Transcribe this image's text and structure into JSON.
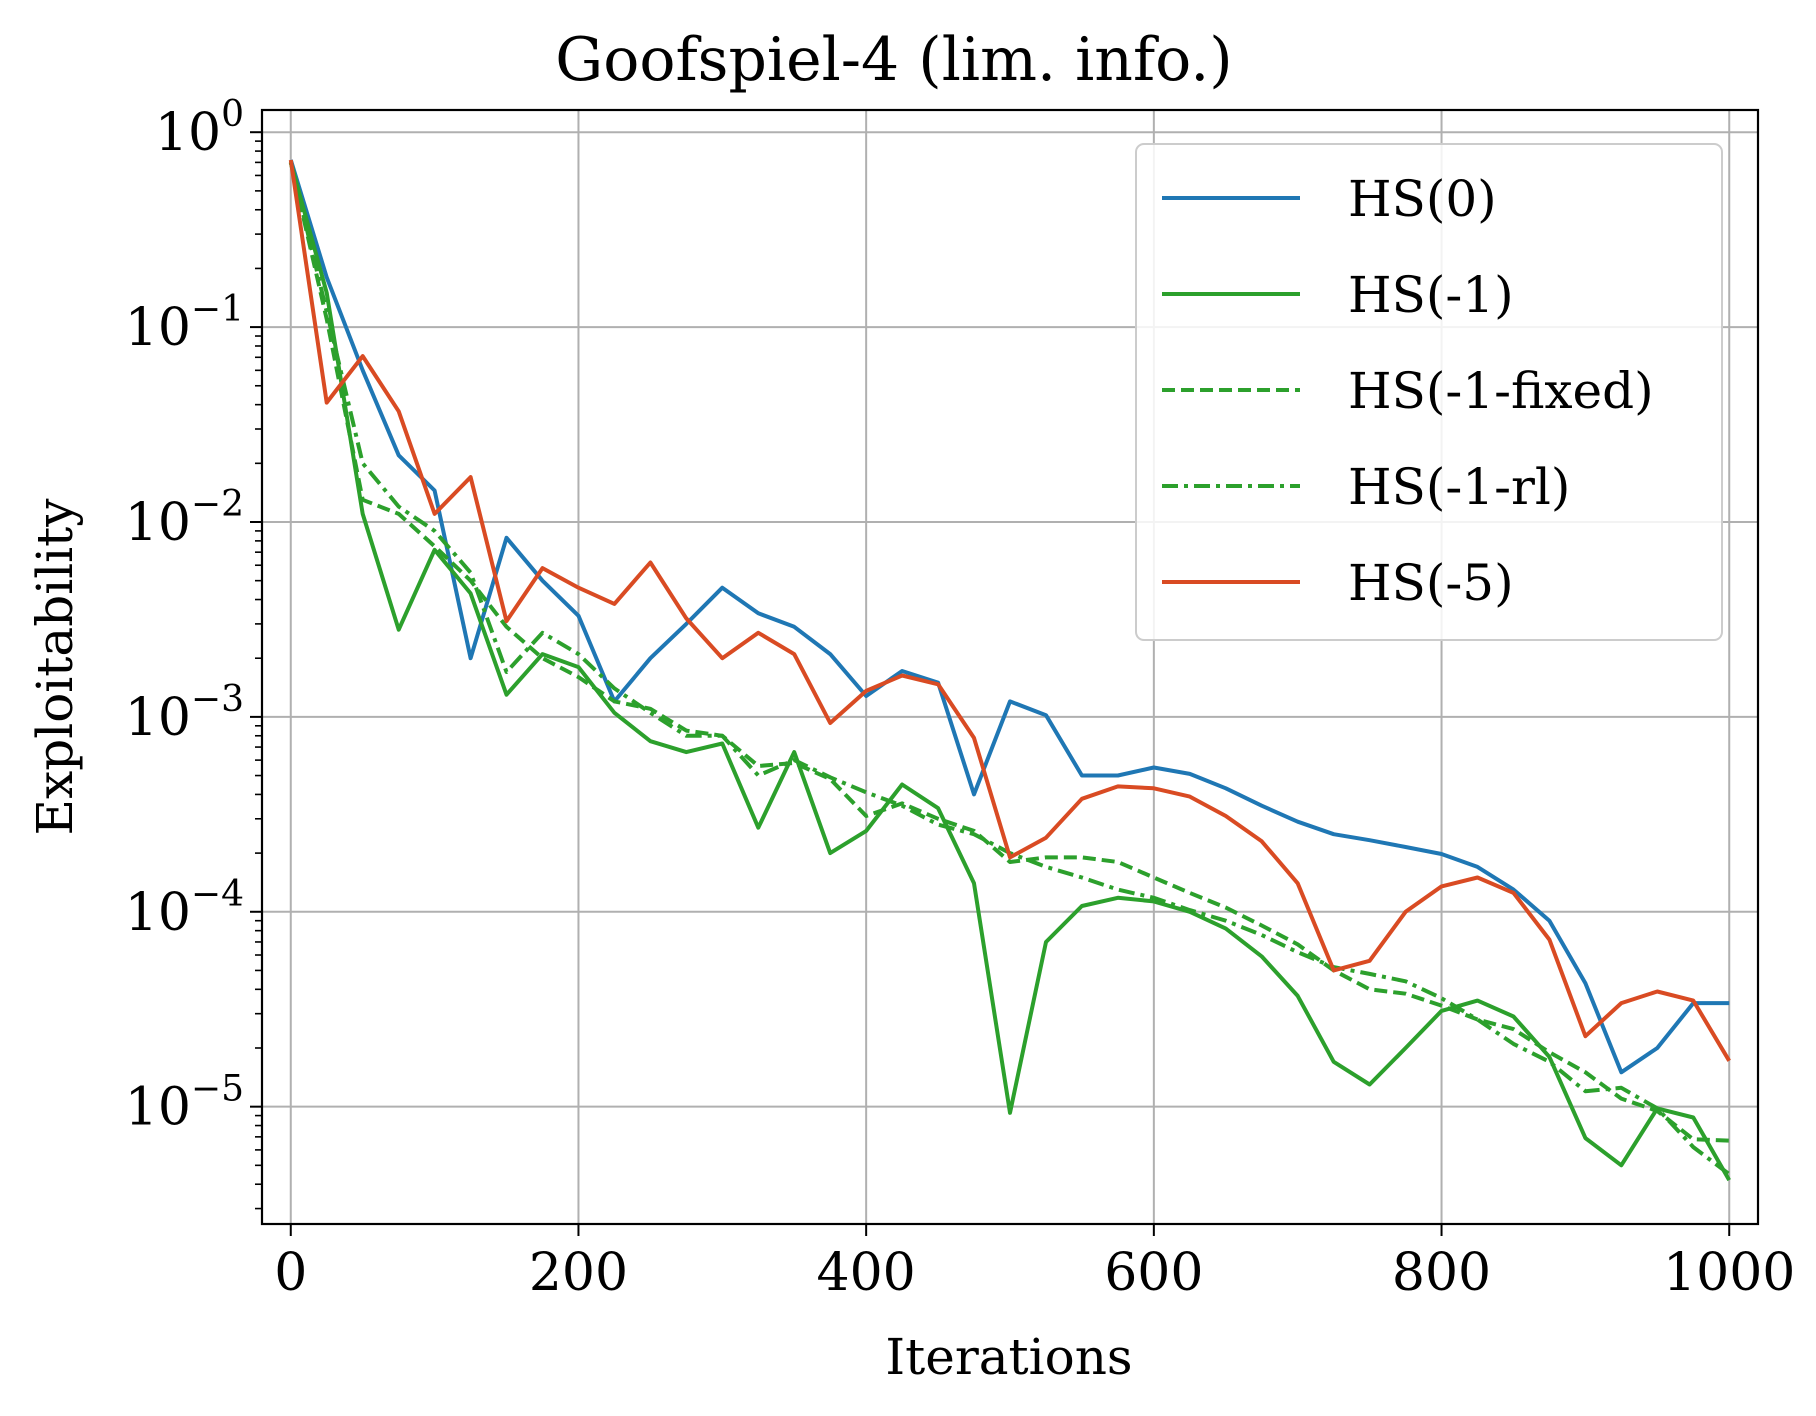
{
  "chart_data": {
    "type": "line",
    "title": "Goofspiel-4 (lim. info.)",
    "xlabel": "Iterations",
    "ylabel": "Exploitability",
    "xscale": "linear",
    "yscale": "log",
    "xlim": [
      -20,
      1020
    ],
    "ylim": [
      2.5e-06,
      1.3
    ],
    "grid": true,
    "legend_position": "top-right",
    "x_ticks": [
      {
        "value": 0,
        "label": "0"
      },
      {
        "value": 200,
        "label": "200"
      },
      {
        "value": 400,
        "label": "400"
      },
      {
        "value": 600,
        "label": "600"
      },
      {
        "value": 800,
        "label": "800"
      },
      {
        "value": 1000,
        "label": "1000"
      }
    ],
    "y_ticks": [
      {
        "value": 1,
        "base": "10",
        "exp": "0"
      },
      {
        "value": 0.1,
        "base": "10",
        "exp": "−1"
      },
      {
        "value": 0.01,
        "base": "10",
        "exp": "−2"
      },
      {
        "value": 0.001,
        "base": "10",
        "exp": "−3"
      },
      {
        "value": 0.0001,
        "base": "10",
        "exp": "−4"
      },
      {
        "value": 1e-05,
        "base": "10",
        "exp": "−5"
      }
    ],
    "x": [
      0,
      25,
      50,
      75,
      100,
      125,
      150,
      175,
      200,
      225,
      250,
      275,
      300,
      325,
      350,
      375,
      400,
      425,
      450,
      475,
      500,
      525,
      550,
      575,
      600,
      625,
      650,
      675,
      700,
      725,
      750,
      775,
      800,
      825,
      850,
      875,
      900,
      925,
      950,
      975,
      1000
    ],
    "series": [
      {
        "name": "HS(0)",
        "color": "#1f77b4",
        "dash": "solid",
        "values": [
          0.72,
          0.18,
          0.06,
          0.022,
          0.0145,
          0.002,
          0.0083,
          0.005,
          0.0033,
          0.0012,
          0.002,
          0.003,
          0.0046,
          0.0034,
          0.0029,
          0.0021,
          0.00128,
          0.00172,
          0.0015,
          0.0004,
          0.0012,
          0.00102,
          0.0005,
          0.0005,
          0.00055,
          0.00051,
          0.00043,
          0.00035,
          0.00029,
          0.00025,
          0.000233,
          0.000215,
          0.000198,
          0.00017,
          0.00013,
          9e-05,
          4.3e-05,
          1.5e-05,
          2e-05,
          3.4e-05,
          3.4e-05
        ]
      },
      {
        "name": "HS(-1)",
        "color": "#2ca02c",
        "dash": "solid",
        "values": [
          0.7,
          0.15,
          0.011,
          0.0028,
          0.0072,
          0.0043,
          0.0013,
          0.0021,
          0.0018,
          0.00105,
          0.00075,
          0.00066,
          0.00073,
          0.00027,
          0.00066,
          0.0002,
          0.00026,
          0.00045,
          0.00034,
          0.00014,
          9.3e-06,
          7e-05,
          0.000107,
          0.000118,
          0.000113,
          0.0001,
          8.2e-05,
          5.9e-05,
          3.7e-05,
          1.7e-05,
          1.3e-05,
          2e-05,
          3.1e-05,
          3.5e-05,
          2.9e-05,
          1.8e-05,
          6.9e-06,
          5e-06,
          9.8e-06,
          8.8e-06,
          4.2e-06
        ]
      },
      {
        "name": "HS(-1-fixed)",
        "color": "#2ca02c",
        "dash": "dashed",
        "values": [
          0.7,
          0.11,
          0.013,
          0.011,
          0.0075,
          0.005,
          0.0029,
          0.002,
          0.0016,
          0.0012,
          0.0011,
          0.00085,
          0.0008,
          0.00056,
          0.00058,
          0.00048,
          0.00031,
          0.00036,
          0.0003,
          0.00026,
          0.00018,
          0.00019,
          0.00019,
          0.00018,
          0.00015,
          0.000125,
          0.000105,
          8.5e-05,
          6.8e-05,
          5e-05,
          4e-05,
          3.8e-05,
          3.3e-05,
          2.8e-05,
          2.5e-05,
          1.9e-05,
          1.5e-05,
          1.1e-05,
          9.5e-06,
          6.8e-06,
          6.7e-06
        ]
      },
      {
        "name": "HS(-1-rl)",
        "color": "#2ca02c",
        "dash": "dashdot",
        "values": [
          0.7,
          0.12,
          0.02,
          0.012,
          0.009,
          0.0055,
          0.0017,
          0.0027,
          0.0021,
          0.0014,
          0.00105,
          0.0008,
          0.0008,
          0.0005,
          0.0006,
          0.00049,
          0.00041,
          0.00035,
          0.00028,
          0.00025,
          0.0002,
          0.00017,
          0.00015,
          0.00013,
          0.000118,
          0.000102,
          9e-05,
          7.6e-05,
          6.2e-05,
          5.2e-05,
          4.8e-05,
          4.4e-05,
          3.6e-05,
          2.8e-05,
          2.1e-05,
          1.7e-05,
          1.2e-05,
          1.25e-05,
          9.8e-06,
          6.2e-06,
          4.5e-06
        ]
      },
      {
        "name": "HS(-5)",
        "color": "#d94b23",
        "dash": "solid",
        "values": [
          0.72,
          0.041,
          0.071,
          0.037,
          0.011,
          0.017,
          0.0031,
          0.0058,
          0.0046,
          0.0038,
          0.0062,
          0.0032,
          0.002,
          0.0027,
          0.0021,
          0.00093,
          0.00136,
          0.00163,
          0.00147,
          0.00078,
          0.00019,
          0.00024,
          0.00038,
          0.00044,
          0.00043,
          0.00039,
          0.00031,
          0.00023,
          0.00014,
          5e-05,
          5.6e-05,
          0.0001,
          0.000135,
          0.00015,
          0.000125,
          7.2e-05,
          2.3e-05,
          3.4e-05,
          3.9e-05,
          3.5e-05,
          1.72e-05
        ]
      }
    ]
  }
}
